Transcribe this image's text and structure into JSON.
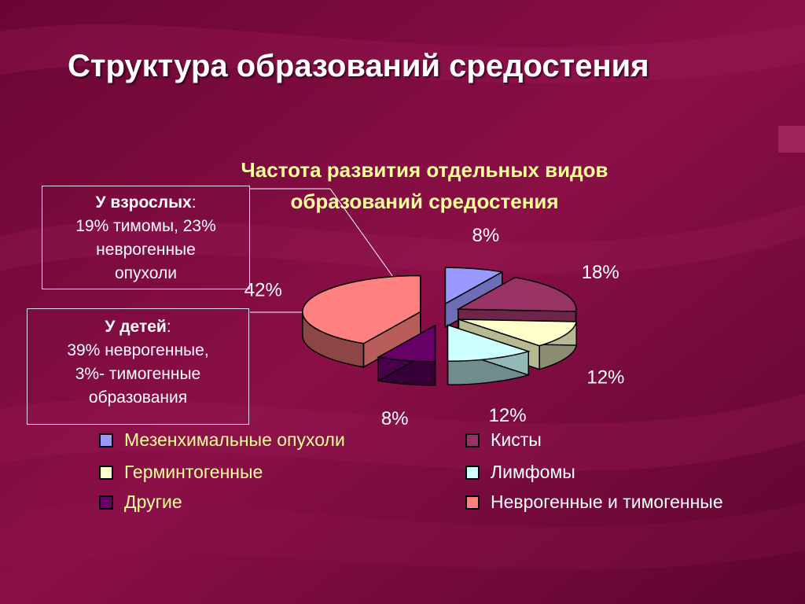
{
  "slide": {
    "title": "Структура образований средостения"
  },
  "notes": {
    "adults": {
      "head": "У взрослых",
      "punct": ":",
      "lines": [
        "19% тимомы, 23%",
        "неврогенные",
        "опухоли"
      ]
    },
    "children": {
      "head": "У детей",
      "punct": ":",
      "lines": [
        "39% неврогенные,",
        "3%- тимогенные",
        "образования"
      ]
    }
  },
  "chart_data": {
    "type": "pie",
    "style": "3d-exploded",
    "title_lines": [
      "Частота развития отдельных видов",
      "образований средостения"
    ],
    "slices": [
      {
        "name": "Мезенхимальные опухоли",
        "value": 8,
        "label": "8%",
        "color": "#9999ff"
      },
      {
        "name": "Кисты",
        "value": 18,
        "label": "18%",
        "color": "#993366"
      },
      {
        "name": "Герминтогенные",
        "value": 12,
        "label": "12%",
        "color": "#ffffcc"
      },
      {
        "name": "Лимфомы",
        "value": 12,
        "label": "12%",
        "color": "#ccffff"
      },
      {
        "name": "Другие",
        "value": 8,
        "label": "8%",
        "color": "#660066"
      },
      {
        "name": "Неврогенные и тимогенные",
        "value": 42,
        "label": "42%",
        "color": "#ff8080"
      }
    ],
    "legend_placement": "bottom"
  }
}
